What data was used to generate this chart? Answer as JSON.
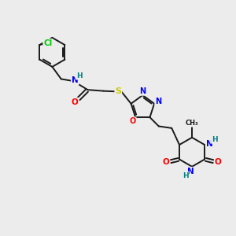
{
  "background_color": "#ececec",
  "bond_color": "#1a1a1a",
  "atom_colors": {
    "N": "#0000ff",
    "O": "#ff0000",
    "S": "#cccc00",
    "Cl": "#00cc00",
    "H": "#008080",
    "C": "#1a1a1a"
  },
  "figsize": [
    3.0,
    3.0
  ],
  "dpi": 100,
  "lw": 1.4
}
